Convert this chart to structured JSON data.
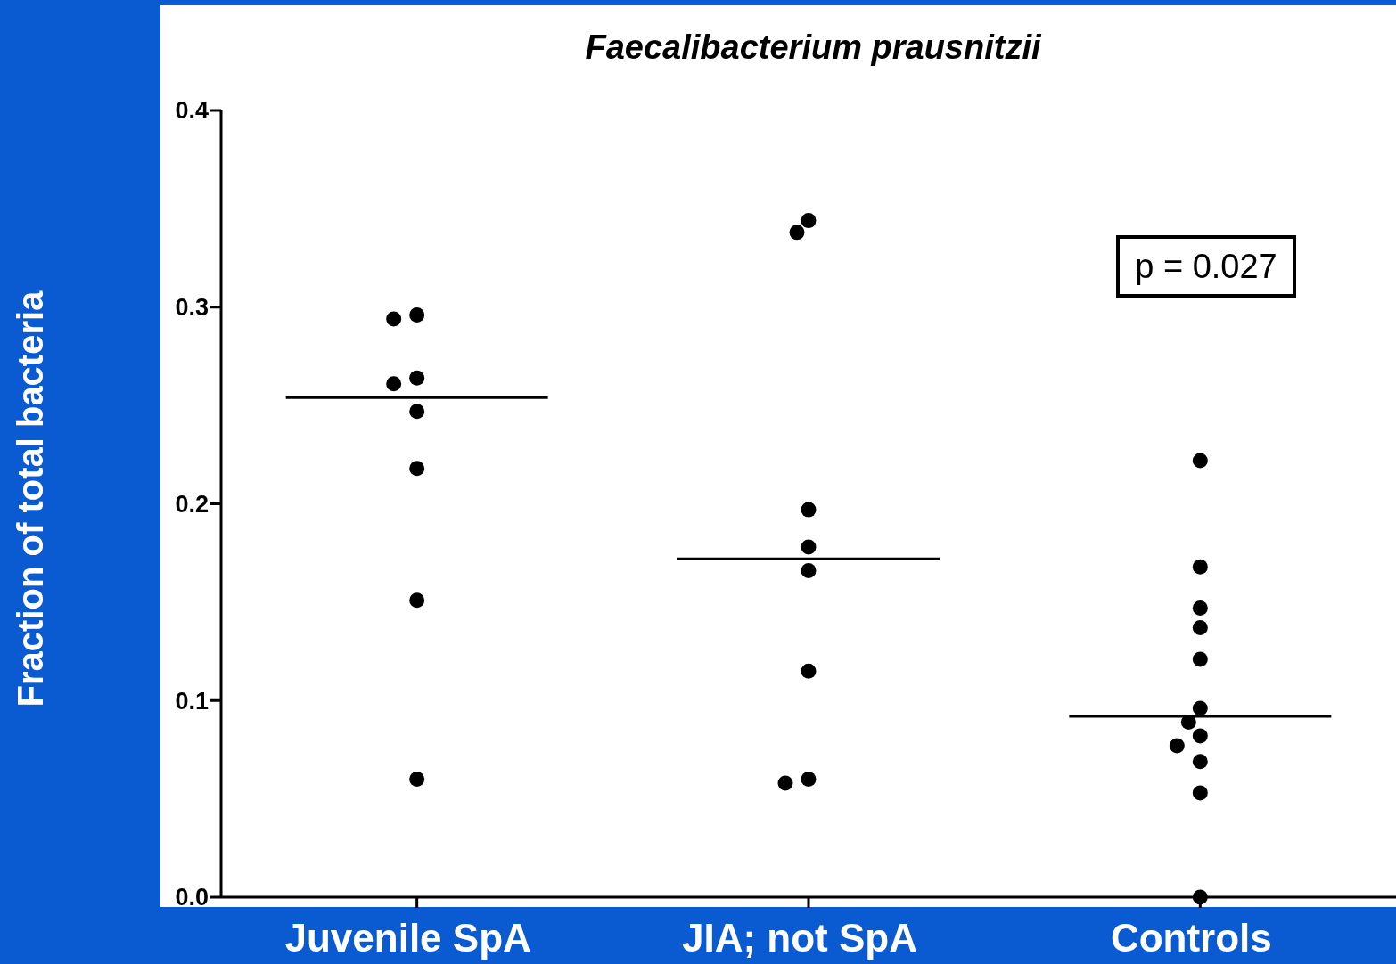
{
  "chart_data": {
    "type": "scatter",
    "title": "Faecalibacterium prausnitzii",
    "ylabel": "Fraction of total bacteria",
    "categories": [
      "Juvenile SpA",
      "JIA; not SpA",
      "Controls"
    ],
    "series": [
      {
        "color": "#000000",
        "x": [
          "Juvenile SpA",
          "Juvenile SpA",
          "Juvenile SpA",
          "Juvenile SpA",
          "Juvenile SpA",
          "Juvenile SpA",
          "Juvenile SpA",
          "Juvenile SpA",
          "JIA; not SpA",
          "JIA; not SpA",
          "JIA; not SpA",
          "JIA; not SpA",
          "JIA; not SpA",
          "JIA; not SpA",
          "JIA; not SpA",
          "JIA; not SpA",
          "Controls",
          "Controls",
          "Controls",
          "Controls",
          "Controls",
          "Controls",
          "Controls",
          "Controls",
          "Controls",
          "Controls",
          "Controls",
          "Controls"
        ],
        "values": [
          0.296,
          0.294,
          0.264,
          0.261,
          0.247,
          0.218,
          0.151,
          0.06,
          0.344,
          0.338,
          0.197,
          0.178,
          0.166,
          0.115,
          0.06,
          0.058,
          0.222,
          0.168,
          0.147,
          0.137,
          0.121,
          0.096,
          0.089,
          0.082,
          0.077,
          0.069,
          0.053,
          0.0
        ],
        "marker": "circle"
      }
    ],
    "ref_lines": [
      {
        "axis": "y",
        "value": 0.254,
        "color": "#000000"
      },
      {
        "axis": "y",
        "value": 0.172,
        "color": "#000000"
      },
      {
        "axis": "y",
        "value": 0.092,
        "color": "#000000"
      }
    ],
    "ylim": [
      0,
      0.4
    ],
    "yticks": [
      {
        "value": 0,
        "label": "0.0"
      },
      0.1,
      0.2,
      0.3,
      0.4
    ],
    "grid": false,
    "annotations": [
      "p = 0.027"
    ]
  }
}
